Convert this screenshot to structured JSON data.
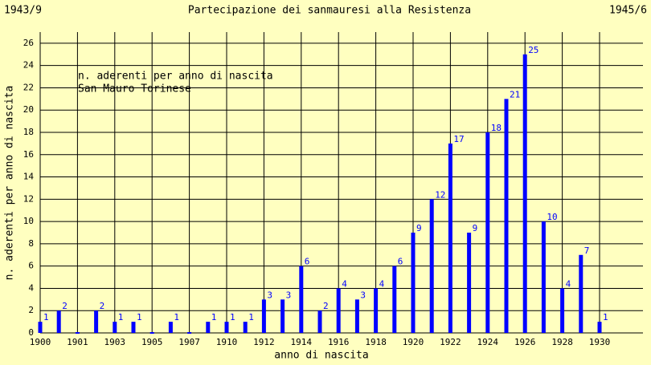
{
  "chart_data": {
    "type": "bar",
    "title": "Partecipazione dei sanmauresi alla Resistenza",
    "top_left": "1943/9",
    "top_right": "1945/6",
    "annotation": [
      "n. aderenti per anno di nascita",
      "San Mauro Torinese"
    ],
    "x_label": "anno di nascita",
    "y_label": "n. aderenti per anno di nascita",
    "categories": [
      "1900",
      null,
      "1901",
      null,
      "1903",
      null,
      "1905",
      null,
      "1907",
      null,
      "1910",
      null,
      "1912",
      null,
      "1914",
      null,
      "1916",
      null,
      "1918",
      null,
      "1920",
      null,
      "1922",
      null,
      "1924",
      null,
      "1926",
      null,
      "1928",
      null,
      "1930"
    ],
    "values": [
      1,
      2,
      0,
      2,
      1,
      1,
      0,
      1,
      0,
      1,
      1,
      1,
      3,
      3,
      6,
      2,
      4,
      3,
      4,
      6,
      9,
      12,
      17,
      9,
      18,
      21,
      25,
      10,
      4,
      7,
      1
    ],
    "value_labels": [
      "1",
      "2",
      null,
      "2",
      "1",
      "1",
      null,
      "1",
      null,
      "1",
      "1",
      "1",
      "3",
      "3",
      "6",
      "2",
      "4",
      "3",
      "4",
      "6",
      "9",
      "12",
      "17",
      "9",
      "18",
      "21",
      "25",
      "10",
      "4",
      "7",
      "1"
    ],
    "color": "#0000ff",
    "ylim": [
      0,
      27
    ],
    "yticks": [
      0,
      2,
      4,
      6,
      8,
      10,
      12,
      14,
      16,
      18,
      20,
      22,
      24,
      26
    ],
    "grid": true
  }
}
